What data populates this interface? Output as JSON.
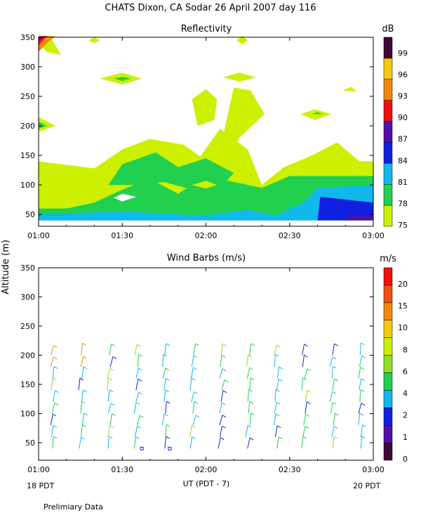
{
  "title": "CHATS Dixon, CA  Sodar  26 April 2007  day 116",
  "footer_note": "Prelimiary Data",
  "shared_y_label": "Altitude (m)",
  "x_axis_label": "UT  (PDT - 7)",
  "x_left_sub": "18 PDT",
  "x_right_sub": "20 PDT",
  "chart_data": [
    {
      "type": "heatmap",
      "title": "Reflectivity",
      "colorbar_unit": "dB",
      "colorbar_ticks": [
        "75",
        "78",
        "81",
        "84",
        "87",
        "90",
        "93",
        "96",
        "99"
      ],
      "colorbar_colors": [
        "#ccf000",
        "#22d050",
        "#10b8ec",
        "#1020e0",
        "#5010a8",
        "#f01010",
        "#f08810",
        "#f4c810",
        "#400838"
      ],
      "x_ticks": [
        "01:00",
        "01:30",
        "02:00",
        "02:30",
        "03:00"
      ],
      "x_range": [
        "01:00",
        "03:00"
      ],
      "y_ticks": [
        "50",
        "100",
        "150",
        "200",
        "250",
        "300",
        "350"
      ],
      "y_range": [
        30,
        350
      ],
      "regions_note": "75 dB fill over most of 40-140 m, 78 dB band 60-150 m, 81 dB near surface, 84-87 dB after 02:40 below 80 m, small 90-99 dB cell at 01:00 near 345 m"
    },
    {
      "type": "scatter",
      "title": "Wind Barbs (m/s)",
      "colorbar_unit": "m/s",
      "colorbar_ticks": [
        "0",
        "1",
        "2",
        "4",
        "6",
        "8",
        "10",
        "15",
        "20"
      ],
      "colorbar_colors": [
        "#400838",
        "#5010a8",
        "#1020e0",
        "#10b8ec",
        "#22d050",
        "#90e020",
        "#ccf000",
        "#f4c810",
        "#f08810",
        "#f05010",
        "#f01010"
      ],
      "x_ticks": [
        "01:00",
        "01:30",
        "02:00",
        "02:30",
        "03:00"
      ],
      "x_range": [
        "01:00",
        "03:00"
      ],
      "y_ticks": [
        "50",
        "100",
        "150",
        "200",
        "250",
        "300",
        "350"
      ],
      "y_range": [
        20,
        350
      ],
      "profile_times": [
        "01:05",
        "01:15",
        "01:25",
        "01:35",
        "01:45",
        "01:55",
        "02:05",
        "02:15",
        "02:25",
        "02:35",
        "02:45",
        "02:55"
      ],
      "heights": [
        40,
        60,
        80,
        100,
        120,
        140,
        160,
        180,
        200
      ]
    }
  ]
}
